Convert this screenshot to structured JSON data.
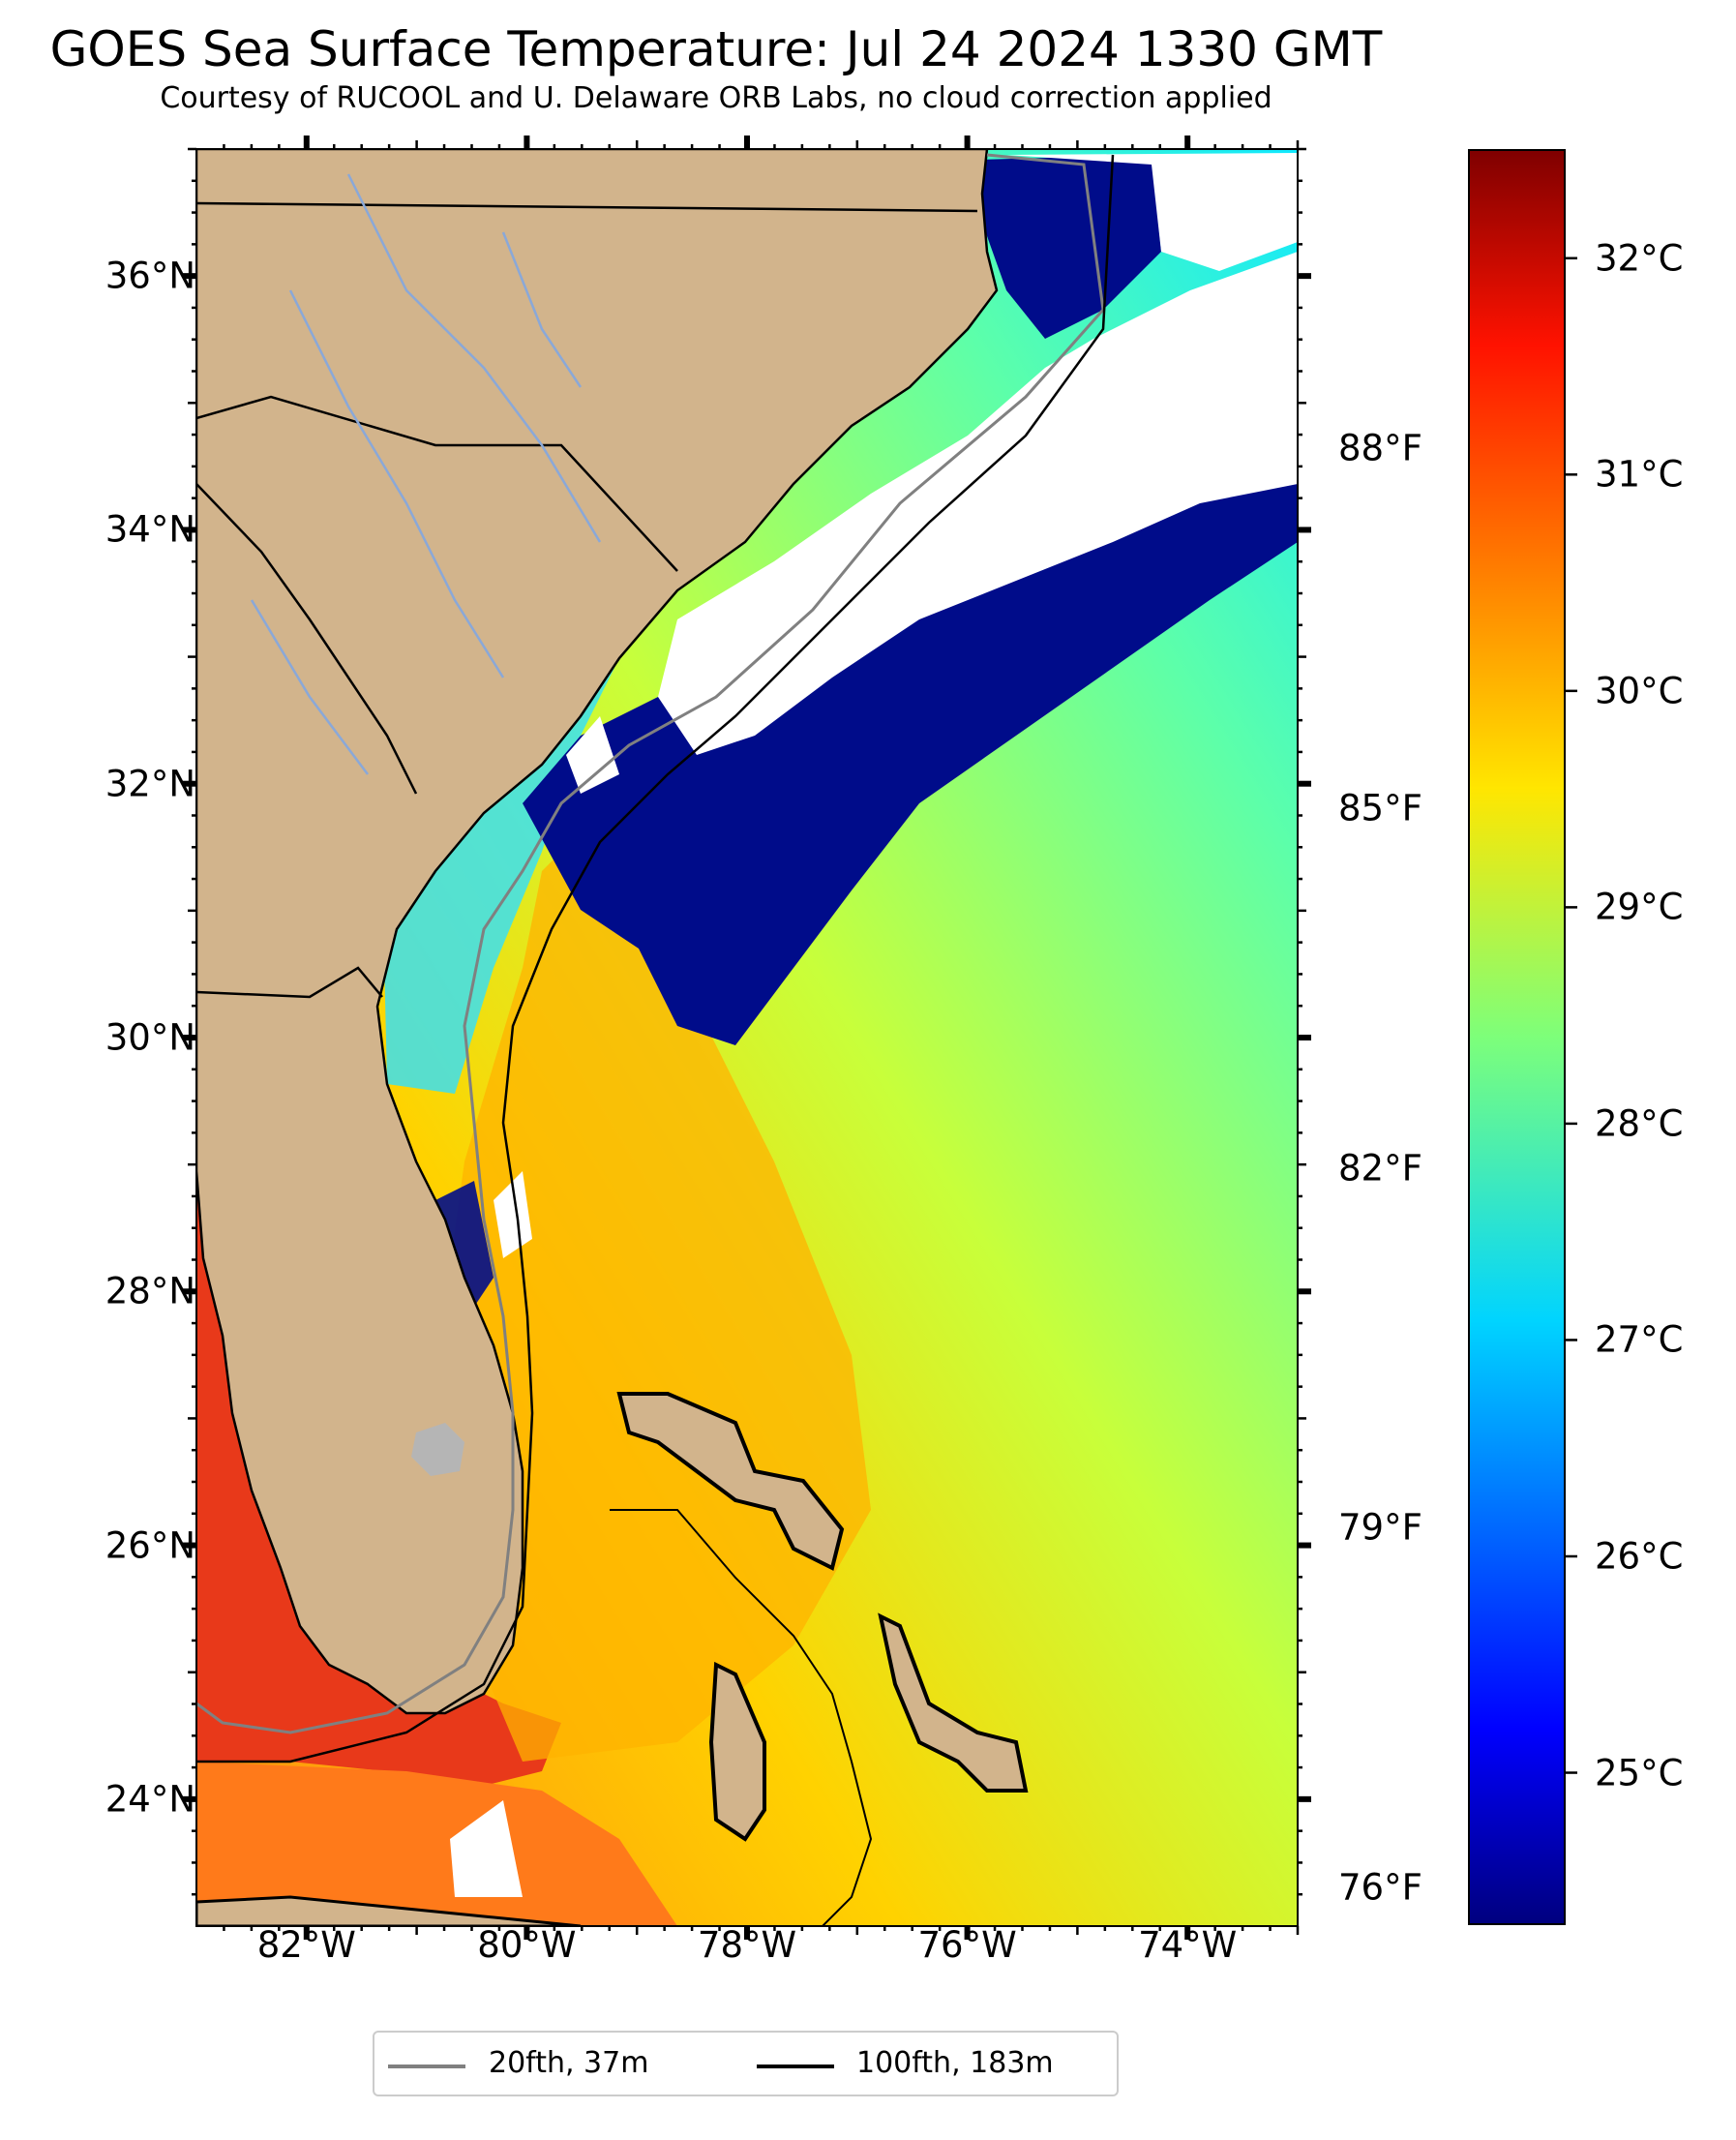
{
  "title": "GOES Sea Surface Temperature: Jul 24 2024 1330 GMT",
  "subtitle": "Courtesy of RUCOOL and U. Delaware ORB Labs, no cloud correction applied",
  "axes": {
    "lat_labels": [
      "36°N",
      "34°N",
      "32°N",
      "30°N",
      "28°N",
      "26°N",
      "24°N"
    ],
    "lon_labels": [
      "82°W",
      "80°W",
      "78°W",
      "76°W",
      "74°W"
    ],
    "right_f_labels": [
      "88°F",
      "85°F",
      "82°F",
      "79°F",
      "76°F"
    ]
  },
  "colorbar": {
    "labels": [
      "32°C",
      "31°C",
      "30°C",
      "29°C",
      "28°C",
      "27°C",
      "26°C",
      "25°C"
    ],
    "range_c": [
      24.3,
      32.5
    ],
    "colormap": "jet"
  },
  "legend": {
    "items": [
      {
        "label": "20fth, 37m",
        "color": "#808080"
      },
      {
        "label": "100fth, 183m",
        "color": "#000000"
      }
    ]
  },
  "colors": {
    "land": "#d2b48c",
    "cloud": "#ffffff",
    "cold": "#000c8a",
    "warm_gulf": "#e8391a",
    "isobath_20": "#808080",
    "isobath_100": "#000000",
    "rivers": "#8aa8d8"
  },
  "extent": {
    "lon": [
      -83,
      -73
    ],
    "lat": [
      23,
      37
    ]
  }
}
